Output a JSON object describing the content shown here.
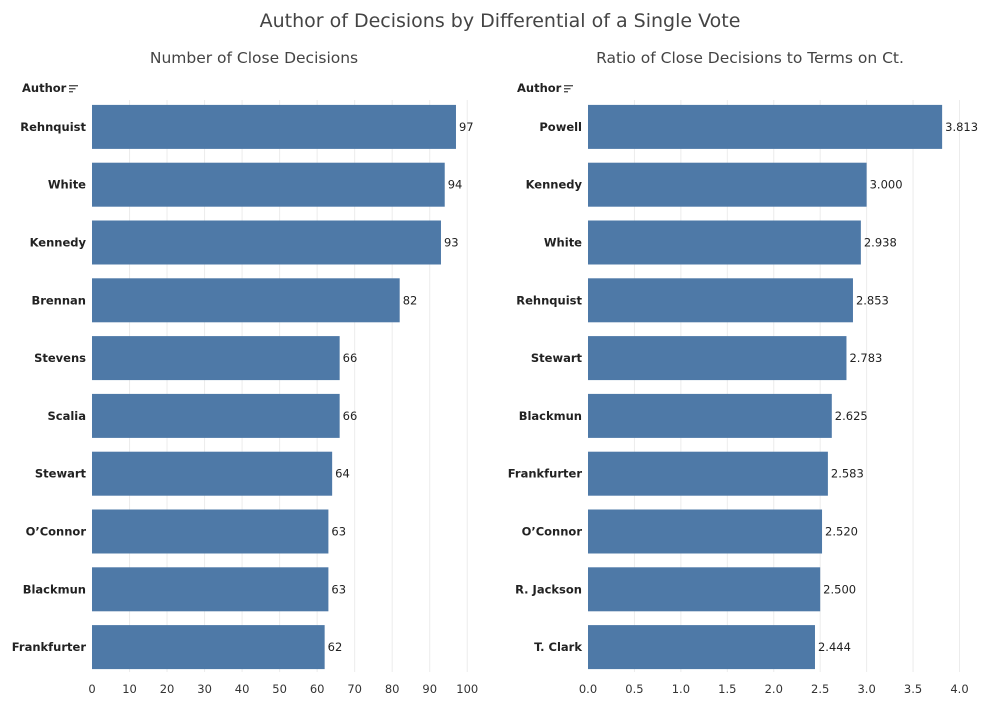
{
  "title": "Author of Decisions by Differential of a Single Vote",
  "colors": {
    "bar": "#4e79a7",
    "grid": "#ececec",
    "text": "#222222"
  },
  "chart_data": [
    {
      "type": "bar",
      "orientation": "horizontal",
      "title": "Number of Close Decisions",
      "ylabel": "Author",
      "categories": [
        "Rehnquist",
        "White",
        "Kennedy",
        "Brennan",
        "Stevens",
        "Scalia",
        "Stewart",
        "O’Connor",
        "Blackmun",
        "Frankfurter"
      ],
      "values": [
        97,
        94,
        93,
        82,
        66,
        66,
        64,
        63,
        63,
        62
      ],
      "value_labels": [
        "97",
        "94",
        "93",
        "82",
        "66",
        "66",
        "64",
        "63",
        "63",
        "62"
      ],
      "xlim": [
        0,
        105
      ],
      "ticks": [
        0,
        10,
        20,
        30,
        40,
        50,
        60,
        70,
        80,
        90,
        100
      ],
      "tick_labels": [
        "0",
        "10",
        "20",
        "30",
        "40",
        "50",
        "60",
        "70",
        "80",
        "90",
        "100"
      ],
      "grid": true
    },
    {
      "type": "bar",
      "orientation": "horizontal",
      "title": "Ratio of Close Decisions to Terms on Ct.",
      "ylabel": "Author",
      "categories": [
        "Powell",
        "Kennedy",
        "White",
        "Rehnquist",
        "Stewart",
        "Blackmun",
        "Frankfurter",
        "O’Connor",
        "R. Jackson",
        "T. Clark"
      ],
      "values": [
        3.813,
        3.0,
        2.938,
        2.853,
        2.783,
        2.625,
        2.583,
        2.52,
        2.5,
        2.444
      ],
      "value_labels": [
        "3.813",
        "3.000",
        "2.938",
        "2.853",
        "2.783",
        "2.625",
        "2.583",
        "2.520",
        "2.500",
        "2.444"
      ],
      "xlim": [
        0,
        4.35
      ],
      "ticks": [
        0,
        0.5,
        1,
        1.5,
        2,
        2.5,
        3,
        3.5,
        4
      ],
      "tick_labels": [
        "0.0",
        "0.5",
        "1.0",
        "1.5",
        "2.0",
        "2.5",
        "3.0",
        "3.5",
        "4.0"
      ],
      "grid": true
    }
  ]
}
